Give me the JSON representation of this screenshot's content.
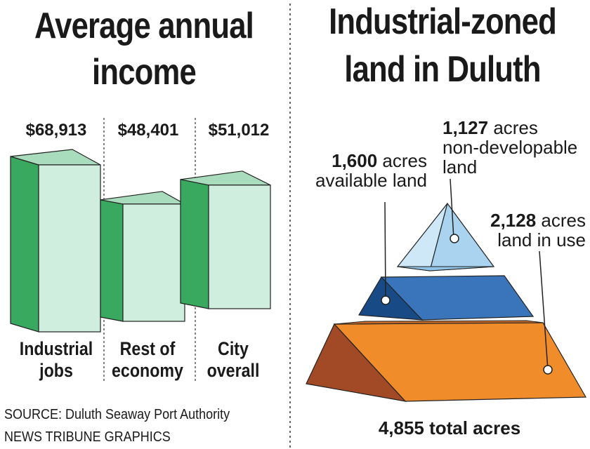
{
  "left_title_line1": "Average annual",
  "left_title_line2": "income",
  "right_title_line1": "Industrial-zoned",
  "right_title_line2": "land in Duluth",
  "source": "SOURCE: Duluth Seaway Port Authority",
  "credit": "NEWS TRIBUNE GRAPHICS",
  "colors": {
    "bar_front": "#cfeedd",
    "bar_side": "#3aa960",
    "bar_top": "#a9dcbc",
    "top_tier": "#a9d3ee",
    "mid_tier": "#2a67b0",
    "bottom_tier": "#f08c2a"
  },
  "chart_data": [
    {
      "type": "bar",
      "title": "Average annual income",
      "categories": [
        "Industrial jobs",
        "Rest of economy",
        "City overall"
      ],
      "category_lines": [
        [
          "Industrial",
          "jobs"
        ],
        [
          "Rest of",
          "economy"
        ],
        [
          "City",
          "overall"
        ]
      ],
      "values": [
        68913,
        48401,
        51012
      ],
      "value_labels": [
        "$68,913",
        "$48,401",
        "$51,012"
      ]
    },
    {
      "type": "pie",
      "style": "3d-pyramid",
      "title": "Industrial-zoned land in Duluth",
      "segments": [
        {
          "label": "non-developable land",
          "value": 1127,
          "value_text": "1,127",
          "unit": "acres",
          "line2": "non-developable",
          "line3": "land"
        },
        {
          "label": "available land",
          "value": 1600,
          "value_text": "1,600",
          "unit": "acres",
          "line2": "available land"
        },
        {
          "label": "land in use",
          "value": 2128,
          "value_text": "2,128",
          "unit": "acres",
          "line2": "land in use"
        }
      ],
      "total_label": "4,855 total acres"
    }
  ]
}
